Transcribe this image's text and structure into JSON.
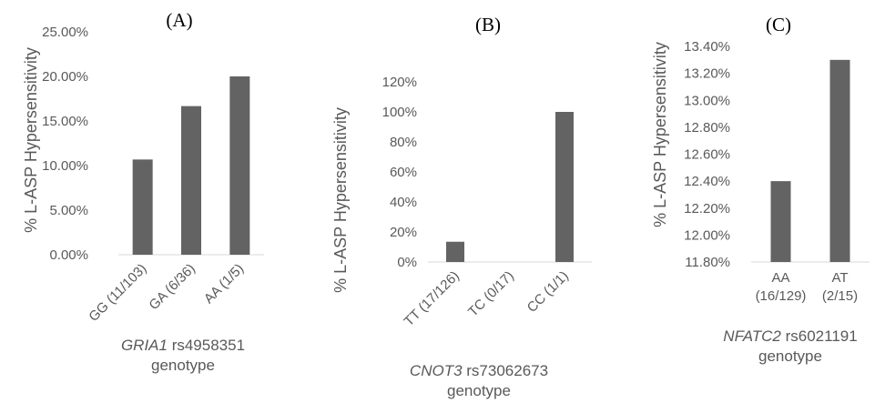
{
  "chart_data": [
    {
      "type": "bar",
      "panel_label": "(A)",
      "ylabel": "% L-ASP Hypersensitivity",
      "xlabel_gene": "GRIA1",
      "xlabel_rest": " rs4958351",
      "xlabel_line2": "genotype",
      "categories": [
        "GG (11/103)",
        "GA (6/36)",
        "AA (1/5)"
      ],
      "values": [
        10.68,
        16.67,
        20.0
      ],
      "ylim": [
        0,
        25
      ],
      "yticks": [
        0,
        5,
        10,
        15,
        20,
        25
      ],
      "ytick_labels": [
        "0.00%",
        "5.00%",
        "10.00%",
        "15.00%",
        "20.00%",
        "25.00%"
      ],
      "color": "#636363",
      "grid": false
    },
    {
      "type": "bar",
      "panel_label": "(B)",
      "ylabel": "% L-ASP Hypersensitivity",
      "xlabel_gene": "CNOT3",
      "xlabel_rest": " rs73062673",
      "xlabel_line2": "genotype",
      "categories": [
        "TT (17/126)",
        "TC (0/17)",
        "CC (1/1)"
      ],
      "values": [
        13.49,
        0,
        100
      ],
      "ylim": [
        0,
        120
      ],
      "yticks": [
        0,
        20,
        40,
        60,
        80,
        100,
        120
      ],
      "ytick_labels": [
        "0%",
        "20%",
        "40%",
        "60%",
        "80%",
        "100%",
        "120%"
      ],
      "color": "#636363",
      "grid": false
    },
    {
      "type": "bar",
      "panel_label": "(C)",
      "ylabel": "% L-ASP Hypersensitivity",
      "xlabel_gene": "NFATC2",
      "xlabel_rest": " rs6021191",
      "xlabel_line2": "genotype",
      "categories": [
        "AA (16/129)",
        "AT (2/15)"
      ],
      "category_lines": [
        [
          "AA",
          "(16/129)"
        ],
        [
          "AT",
          "(2/15)"
        ]
      ],
      "values": [
        12.4,
        13.3
      ],
      "ylim": [
        11.8,
        13.4
      ],
      "yticks": [
        11.8,
        12.0,
        12.2,
        12.4,
        12.6,
        12.8,
        13.0,
        13.2,
        13.4
      ],
      "ytick_labels": [
        "11.80%",
        "12.00%",
        "12.20%",
        "12.40%",
        "12.60%",
        "12.80%",
        "13.00%",
        "13.20%",
        "13.40%"
      ],
      "color": "#636363",
      "grid": false
    }
  ]
}
